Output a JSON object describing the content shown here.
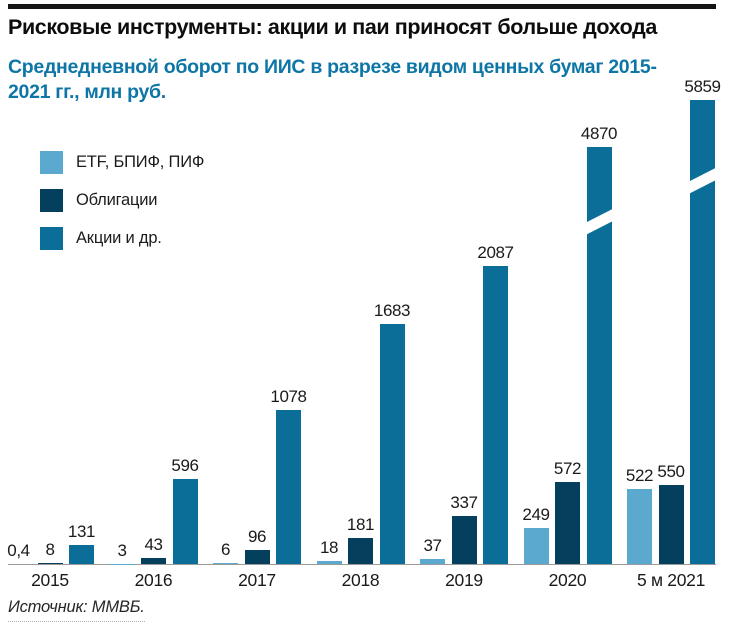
{
  "header": {
    "title": "Рисковые инструменты: акции и паи приносят больше дохода",
    "subtitle_lines": [
      "Среднедневной оборот по ИИС в разрезе видом ценных бумаг 2015-",
      "2021 гг., млн руб."
    ]
  },
  "source": {
    "label": "Источник: ММВБ."
  },
  "colors": {
    "etf": "#5CA9CF",
    "bonds": "#043F5E",
    "stocks": "#0B6E98",
    "subtitle_accent": "#0E76A6"
  },
  "chart_data": {
    "type": "bar",
    "title": "Рисковые инструменты: акции и паи приносят больше дохода",
    "subtitle": "Среднедневной оборот по ИИС в разрезе видом ценных бумаг 2015-2021 гг., млн руб.",
    "unit": "млн руб.",
    "grid": false,
    "legend_position": "top-left",
    "categories": [
      "2015",
      "2016",
      "2017",
      "2018",
      "2019",
      "2020",
      "5 м 2021"
    ],
    "series": [
      {
        "name": "ETF, БПИФ, ПИФ",
        "color": "#5CA9CF",
        "values": [
          0.4,
          3,
          6,
          18,
          37,
          249,
          522
        ],
        "labels": [
          "0,4",
          "3",
          "6",
          "18",
          "37",
          "249",
          "522"
        ]
      },
      {
        "name": "Облигации",
        "color": "#043F5E",
        "values": [
          8,
          43,
          96,
          181,
          337,
          572,
          550
        ],
        "labels": [
          "8",
          "43",
          "96",
          "181",
          "337",
          "572",
          "550"
        ]
      },
      {
        "name": "Акции и др.",
        "color": "#0B6E98",
        "values": [
          131,
          596,
          1078,
          1683,
          2087,
          4870,
          5859
        ],
        "labels": [
          "131",
          "596",
          "1078",
          "1683",
          "2087",
          "4870",
          "5859"
        ]
      }
    ],
    "axis_breaks": [
      {
        "category": "2020",
        "series": "Акции и др."
      },
      {
        "category": "5 м 2021",
        "series": "Акции и др."
      }
    ],
    "source": "Источник: ММВБ."
  }
}
